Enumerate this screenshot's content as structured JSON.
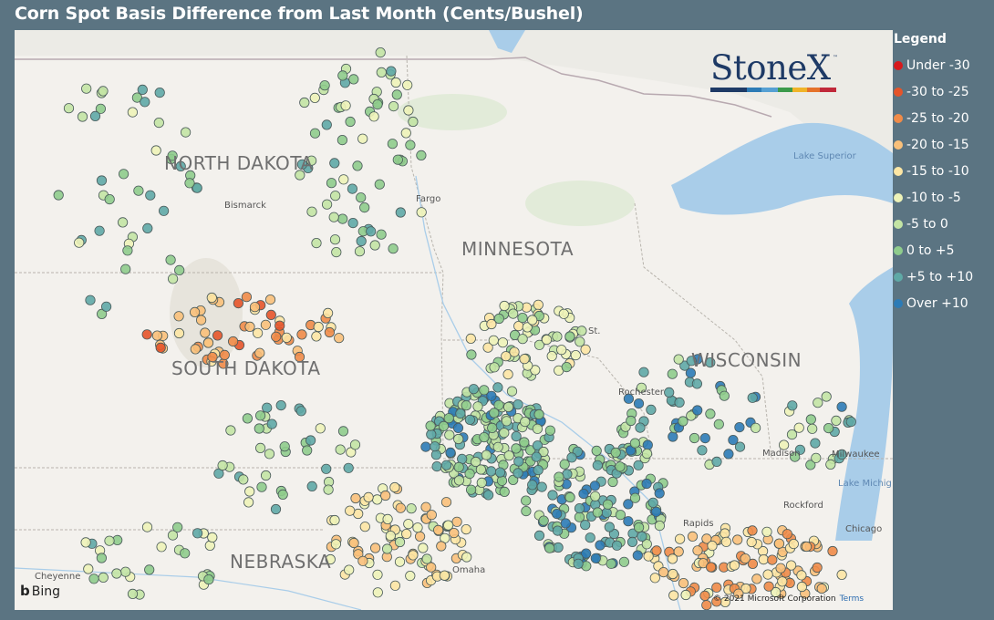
{
  "title": "Corn Spot Basis Difference from Last Month (Cents/Bushel)",
  "legend": {
    "title": "Legend",
    "items": [
      {
        "label": "Under -30",
        "color": "#d7191c"
      },
      {
        "label": "-30 to -25",
        "color": "#e5542a"
      },
      {
        "label": "-25 to -20",
        "color": "#f08b48"
      },
      {
        "label": "-20 to -15",
        "color": "#f9c07a"
      },
      {
        "label": "-15 to -10",
        "color": "#fde6a4"
      },
      {
        "label": "-10 to -5",
        "color": "#eef3b8"
      },
      {
        "label": "-5 to 0",
        "color": "#c3e4a4"
      },
      {
        "label": "0 to +5",
        "color": "#8fcc8c"
      },
      {
        "label": "+5 to +10",
        "color": "#5fa9a6"
      },
      {
        "label": "Over +10",
        "color": "#2c7bb6"
      }
    ]
  },
  "logo": {
    "text": "StoneX",
    "tm": "™"
  },
  "states": {
    "north_dakota": "NORTH DAKOTA",
    "south_dakota": "SOUTH DAKOTA",
    "minnesota": "MINNESOTA",
    "wisconsin": "WISCONSIN",
    "nebraska": "NEBRASKA"
  },
  "cities": {
    "bismarck": "Bismarck",
    "fargo": "Fargo",
    "madison": "Madison",
    "milwaukee": "Milwaukee",
    "chicago": "Chicago",
    "cheyenne": "Cheyenne",
    "rochester": "Rochester",
    "st_paul": "St.",
    "rockford": "Rockford",
    "rapids": "Rapids",
    "omaha": "Omaha"
  },
  "water": {
    "superior": "Lake Superior",
    "michigan": "Lake Michig"
  },
  "attribution": {
    "bing": "Bing",
    "copyright": "© 2021 Microsoft Corporation",
    "terms": "Terms"
  }
}
